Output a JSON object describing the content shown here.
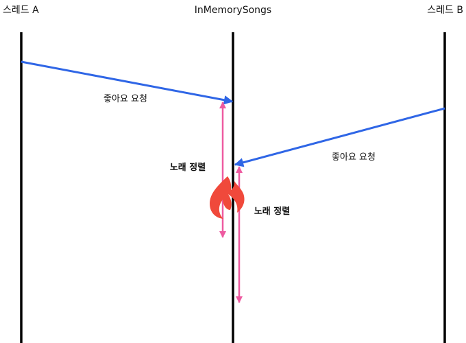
{
  "participants": {
    "thread_a": "스레드 A",
    "shared": "InMemorySongs",
    "thread_b": "스레드 B"
  },
  "messages": {
    "a_to_shared": "좋아요 요청",
    "b_to_shared": "좋아요 요청"
  },
  "operations": {
    "a_sort": "노래 정렬",
    "b_sort": "노래 정렬"
  },
  "conflict_icon": "fire-icon",
  "colors": {
    "lifeline": "#000000",
    "message_arrow": "#2f66e6",
    "operation_arrow": "#ee5aa0",
    "fire": "#f0493b"
  }
}
